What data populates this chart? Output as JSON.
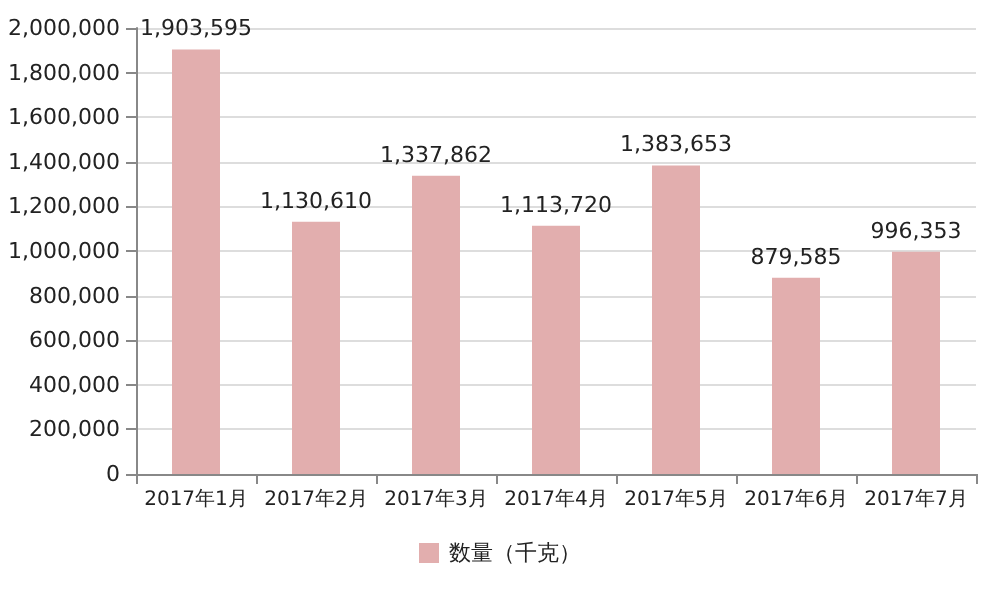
{
  "chart_data": {
    "type": "bar",
    "categories": [
      "2017年1月",
      "2017年2月",
      "2017年3月",
      "2017年4月",
      "2017年5月",
      "2017年6月",
      "2017年7月"
    ],
    "series": [
      {
        "name": "数量（千克）",
        "color": "#e2aeae",
        "values": [
          1903595,
          1130610,
          1337862,
          1113720,
          1383653,
          879585,
          996353
        ],
        "value_labels": [
          "1,903,595",
          "1,130,610",
          "1,337,862",
          "1,113,720",
          "1,383,653",
          "879,585",
          "996,353"
        ]
      }
    ],
    "ylim": [
      0,
      2000000
    ],
    "yticks": [
      0,
      {
        "value": 200000,
        "label": "200,000"
      },
      {
        "value": 400000,
        "label": "400,000"
      },
      {
        "value": 600000,
        "label": "600,000"
      },
      {
        "value": 800000,
        "label": "800,000"
      },
      {
        "value": 1000000,
        "label": "1,000,000"
      },
      {
        "value": 1200000,
        "label": "1,200,000"
      },
      {
        "value": 1400000,
        "label": "1,400,000"
      },
      {
        "value": 1600000,
        "label": "1,600,000"
      },
      {
        "value": 1800000,
        "label": "1,800,000"
      },
      {
        "value": 2000000,
        "label": "2,000,000"
      }
    ],
    "grid": "y",
    "legend": "bottom"
  }
}
